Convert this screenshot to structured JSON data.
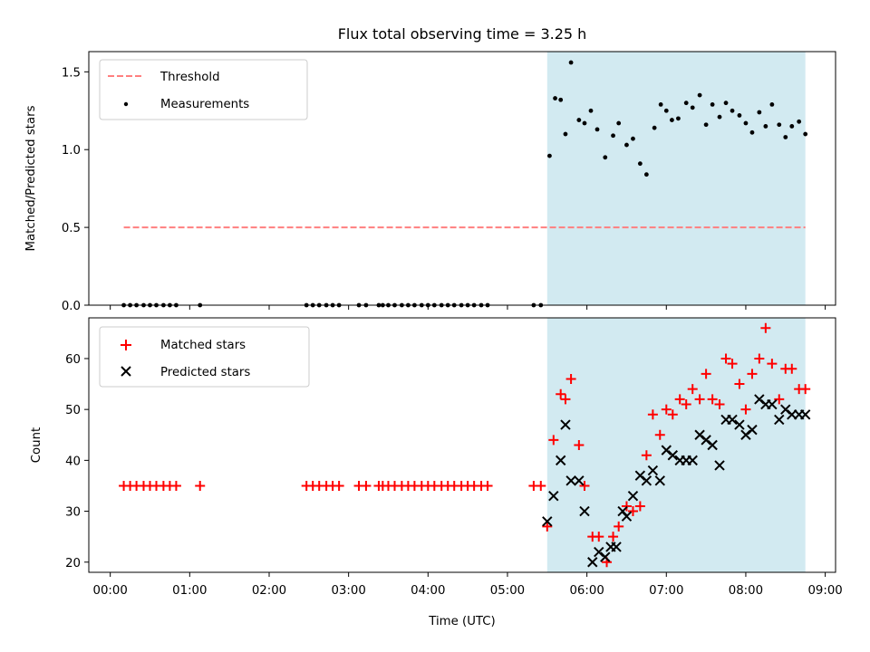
{
  "chart_data": {
    "type": "scatter",
    "title": "Flux total observing time = 3.25 h",
    "xlabel": "Time (UTC)",
    "x_ticks": [
      "00:00",
      "01:00",
      "02:00",
      "03:00",
      "04:00",
      "05:00",
      "06:00",
      "07:00",
      "08:00",
      "09:00"
    ],
    "xlim_hours": [
      -0.27,
      9.13
    ],
    "highlight_span_hours": [
      5.5,
      8.75
    ],
    "colors": {
      "highlight": "#add8e6",
      "threshold": "#ff7f7f",
      "matched": "#ff0000",
      "predicted": "#000000",
      "measurement": "#000000"
    },
    "panels": [
      {
        "id": "ratio",
        "ylabel": "Matched/Predicted stars",
        "ylim": [
          0,
          1.63
        ],
        "y_ticks": [
          "0.0",
          "0.5",
          "1.0",
          "1.5"
        ],
        "y_tick_values": [
          0,
          0.5,
          1.0,
          1.5
        ],
        "legend_position": "upper-left",
        "threshold": {
          "name": "Threshold",
          "value": 0.5,
          "x_range_hours": [
            0.17,
            8.75
          ]
        },
        "measurements": {
          "name": "Measurements",
          "x_hours": [
            0.17,
            0.25,
            0.33,
            0.42,
            0.5,
            0.58,
            0.67,
            0.75,
            0.83,
            1.13,
            2.47,
            2.55,
            2.63,
            2.72,
            2.8,
            2.88,
            3.13,
            3.22,
            3.38,
            3.43,
            3.5,
            3.58,
            3.67,
            3.75,
            3.83,
            3.92,
            4.0,
            4.08,
            4.17,
            4.25,
            4.33,
            4.42,
            4.5,
            4.58,
            4.67,
            4.75,
            5.33,
            5.42,
            5.53,
            5.6,
            5.67,
            5.73,
            5.8,
            5.9,
            5.97,
            6.05,
            6.13,
            6.23,
            6.33,
            6.4,
            6.5,
            6.58,
            6.67,
            6.75,
            6.85,
            6.93,
            7.0,
            7.07,
            7.15,
            7.25,
            7.33,
            7.42,
            7.5,
            7.58,
            7.67,
            7.75,
            7.83,
            7.92,
            8.0,
            8.08,
            8.17,
            8.25,
            8.33,
            8.42,
            8.5,
            8.58,
            8.67,
            8.75
          ],
          "y": [
            0,
            0,
            0,
            0,
            0,
            0,
            0,
            0,
            0,
            0,
            0,
            0,
            0,
            0,
            0,
            0,
            0,
            0,
            0,
            0,
            0,
            0,
            0,
            0,
            0,
            0,
            0,
            0,
            0,
            0,
            0,
            0,
            0,
            0,
            0,
            0,
            0,
            0,
            0.96,
            1.33,
            1.32,
            1.1,
            1.56,
            1.19,
            1.17,
            1.25,
            1.13,
            0.95,
            1.09,
            1.17,
            1.03,
            1.07,
            0.91,
            0.84,
            1.14,
            1.29,
            1.25,
            1.19,
            1.2,
            1.3,
            1.27,
            1.35,
            1.16,
            1.29,
            1.21,
            1.3,
            1.25,
            1.22,
            1.17,
            1.11,
            1.24,
            1.15,
            1.29,
            1.16,
            1.08,
            1.15,
            1.18,
            1.1
          ]
        }
      },
      {
        "id": "count",
        "ylabel": "Count",
        "ylim": [
          18,
          68
        ],
        "y_ticks": [
          "20",
          "30",
          "40",
          "50",
          "60"
        ],
        "y_tick_values": [
          20,
          30,
          40,
          50,
          60
        ],
        "legend_position": "upper-left",
        "matched": {
          "name": "Matched stars",
          "x_hours": [
            0.17,
            0.25,
            0.33,
            0.42,
            0.5,
            0.58,
            0.67,
            0.75,
            0.83,
            1.13,
            2.47,
            2.55,
            2.63,
            2.72,
            2.8,
            2.88,
            3.13,
            3.22,
            3.38,
            3.43,
            3.5,
            3.58,
            3.67,
            3.75,
            3.83,
            3.92,
            4.0,
            4.08,
            4.17,
            4.25,
            4.33,
            4.42,
            4.5,
            4.58,
            4.67,
            4.75,
            5.33,
            5.42,
            5.5,
            5.58,
            5.67,
            5.73,
            5.8,
            5.9,
            5.97,
            6.07,
            6.15,
            6.25,
            6.33,
            6.4,
            6.5,
            6.58,
            6.67,
            6.75,
            6.83,
            6.92,
            7.0,
            7.08,
            7.17,
            7.25,
            7.33,
            7.42,
            7.5,
            7.58,
            7.67,
            7.75,
            7.83,
            7.92,
            8.0,
            8.08,
            8.17,
            8.25,
            8.33,
            8.42,
            8.5,
            8.58,
            8.67,
            8.75
          ],
          "y": [
            35,
            35,
            35,
            35,
            35,
            35,
            35,
            35,
            35,
            35,
            35,
            35,
            35,
            35,
            35,
            35,
            35,
            35,
            35,
            35,
            35,
            35,
            35,
            35,
            35,
            35,
            35,
            35,
            35,
            35,
            35,
            35,
            35,
            35,
            35,
            35,
            35,
            35,
            27,
            44,
            53,
            52,
            56,
            43,
            35,
            25,
            25,
            20,
            25,
            27,
            31,
            30,
            31,
            41,
            49,
            45,
            50,
            49,
            52,
            51,
            54,
            52,
            57,
            52,
            51,
            60,
            59,
            55,
            50,
            57,
            60,
            66,
            59,
            52,
            58,
            58,
            54,
            54
          ]
        },
        "predicted": {
          "name": "Predicted stars",
          "x_hours": [
            5.5,
            5.58,
            5.67,
            5.73,
            5.8,
            5.9,
            5.97,
            6.07,
            6.15,
            6.23,
            6.3,
            6.37,
            6.45,
            6.5,
            6.58,
            6.67,
            6.75,
            6.83,
            6.92,
            7.0,
            7.08,
            7.17,
            7.25,
            7.33,
            7.42,
            7.5,
            7.58,
            7.67,
            7.75,
            7.83,
            7.92,
            8.0,
            8.08,
            8.17,
            8.25,
            8.33,
            8.42,
            8.5,
            8.58,
            8.67,
            8.75
          ],
          "y": [
            28,
            33,
            40,
            47,
            36,
            36,
            30,
            20,
            22,
            21,
            23,
            23,
            30,
            29,
            33,
            37,
            36,
            38,
            36,
            42,
            41,
            40,
            40,
            40,
            45,
            44,
            43,
            39,
            48,
            48,
            47,
            45,
            46,
            52,
            51,
            51,
            48,
            50,
            49,
            49,
            49
          ]
        }
      }
    ]
  }
}
